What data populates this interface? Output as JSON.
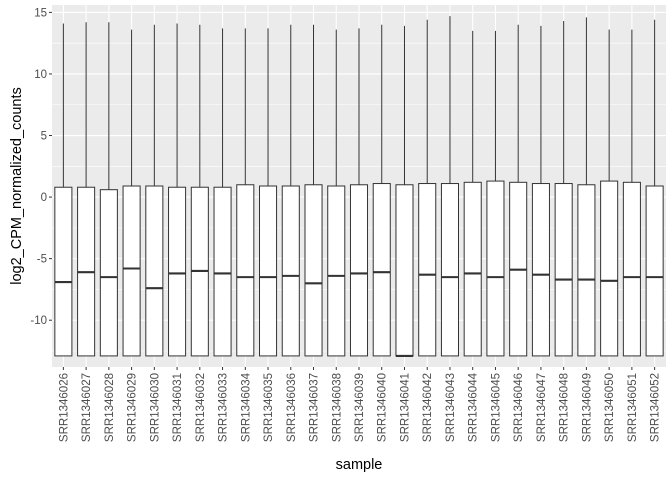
{
  "colors": {
    "panel_background": "#ebebeb",
    "grid_major": "#ffffff",
    "box_fill": "#ffffff",
    "box_stroke": "#333333",
    "tick_text": "#4d4d4d",
    "tick_mark": "#333333"
  },
  "chart_data": {
    "type": "boxplot",
    "title": "",
    "xlabel": "sample",
    "ylabel": "log2_CPM_normalized_counts",
    "ylim": [
      -13.8,
      15.6
    ],
    "yticks": [
      -10,
      -5,
      0,
      5,
      10,
      15
    ],
    "ytick_labels": [
      "-10",
      "-5",
      "0",
      "5",
      "10",
      "15"
    ],
    "grid": true,
    "legend": "none",
    "categories": [
      "SRR1346026",
      "SRR1346027",
      "SRR1346028",
      "SRR1346029",
      "SRR1346030",
      "SRR1346031",
      "SRR1346032",
      "SRR1346033",
      "SRR1346034",
      "SRR1346035",
      "SRR1346036",
      "SRR1346037",
      "SRR1346038",
      "SRR1346039",
      "SRR1346040",
      "SRR1346041",
      "SRR1346042",
      "SRR1346043",
      "SRR1346044",
      "SRR1346045",
      "SRR1346046",
      "SRR1346047",
      "SRR1346048",
      "SRR1346049",
      "SRR1346050",
      "SRR1346051",
      "SRR1346052"
    ],
    "series": [
      {
        "min": [
          -12.9,
          -12.9,
          -12.9,
          -12.9,
          -12.9,
          -12.9,
          -12.9,
          -12.9,
          -12.9,
          -12.9,
          -12.9,
          -12.9,
          -12.9,
          -12.9,
          -12.9,
          -12.9,
          -12.9,
          -12.9,
          -12.9,
          -12.9,
          -12.9,
          -12.9,
          -12.9,
          -12.9,
          -12.9,
          -12.9,
          -12.9
        ],
        "q1": [
          -12.9,
          -12.9,
          -12.9,
          -12.9,
          -12.9,
          -12.9,
          -12.9,
          -12.9,
          -12.9,
          -12.9,
          -12.9,
          -12.9,
          -12.9,
          -12.9,
          -12.9,
          -12.9,
          -12.9,
          -12.9,
          -12.9,
          -12.9,
          -12.9,
          -12.9,
          -12.9,
          -12.9,
          -12.9,
          -12.9,
          -12.9
        ],
        "median": [
          -6.9,
          -6.1,
          -6.5,
          -5.8,
          -7.4,
          -6.2,
          -6.0,
          -6.2,
          -6.5,
          -6.5,
          -6.4,
          -7.0,
          -6.4,
          -6.2,
          -6.1,
          -12.9,
          -6.3,
          -6.5,
          -6.2,
          -6.5,
          -5.9,
          -6.3,
          -6.7,
          -6.7,
          -6.8,
          -6.5,
          -6.5
        ],
        "q3": [
          0.8,
          0.8,
          0.6,
          0.9,
          0.9,
          0.8,
          0.8,
          0.8,
          1.0,
          0.9,
          0.9,
          1.0,
          0.9,
          1.0,
          1.1,
          1.0,
          1.1,
          1.1,
          1.2,
          1.3,
          1.2,
          1.1,
          1.1,
          1.0,
          1.3,
          1.2,
          0.9
        ],
        "max": [
          14.1,
          14.2,
          14.2,
          13.6,
          14.0,
          14.1,
          14.0,
          13.7,
          13.7,
          13.7,
          14.0,
          14.0,
          13.6,
          13.7,
          14.0,
          13.9,
          14.4,
          14.7,
          13.5,
          13.5,
          14.0,
          13.9,
          14.3,
          14.6,
          13.6,
          13.6,
          14.4
        ]
      }
    ]
  }
}
